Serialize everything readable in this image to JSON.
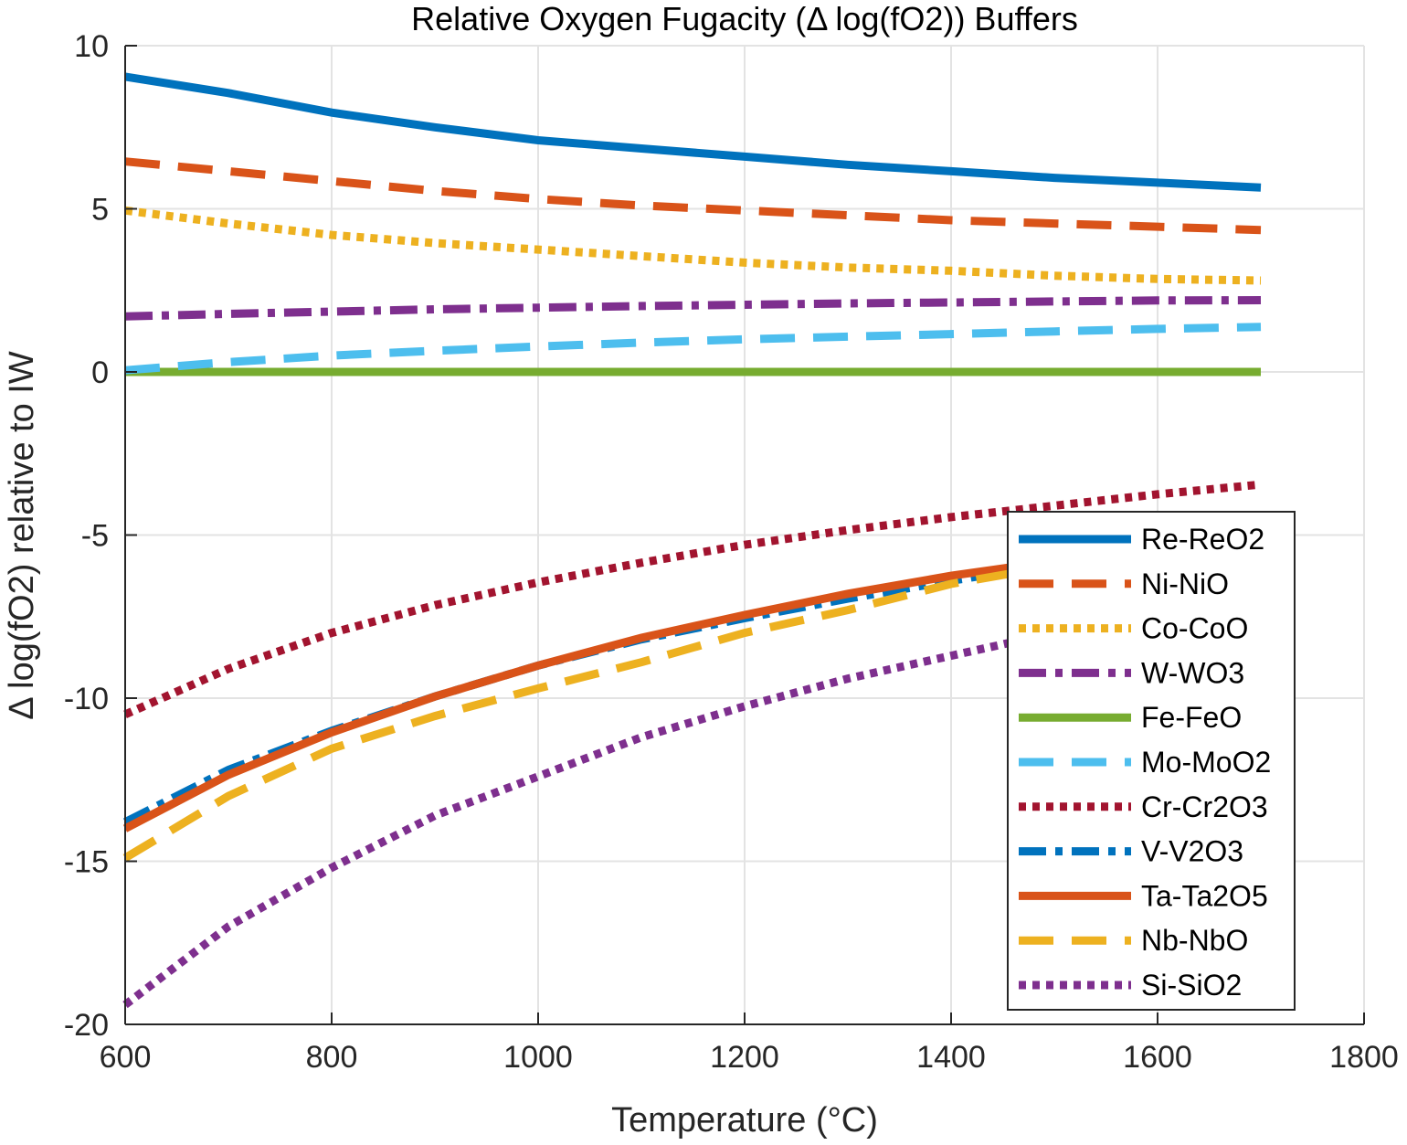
{
  "chart_data": {
    "type": "line",
    "title": "Relative Oxygen Fugacity (Δ log(fO2)) Buffers",
    "xlabel": "Temperature (°C)",
    "ylabel": "Δ log(fO2) relative to IW",
    "xlim": [
      600,
      1800
    ],
    "ylim": [
      -20,
      10
    ],
    "xticks": [
      600,
      800,
      1000,
      1200,
      1400,
      1600,
      1800
    ],
    "yticks": [
      10,
      5,
      0,
      -5,
      -10,
      -15,
      -20
    ],
    "grid": true,
    "legend_position": "lower-right",
    "x": [
      600,
      700,
      800,
      900,
      1000,
      1100,
      1200,
      1300,
      1400,
      1500,
      1600,
      1700
    ],
    "series": [
      {
        "name": "Re-ReO2",
        "color": "#0072BD",
        "style": "solid",
        "values": [
          9.05,
          8.55,
          7.95,
          7.5,
          7.1,
          6.85,
          6.6,
          6.35,
          6.15,
          5.95,
          5.8,
          5.65
        ]
      },
      {
        "name": "Ni-NiO",
        "color": "#D95319",
        "style": "dashed",
        "values": [
          6.45,
          6.15,
          5.85,
          5.55,
          5.3,
          5.1,
          4.95,
          4.8,
          4.65,
          4.55,
          4.45,
          4.35
        ]
      },
      {
        "name": "Co-CoO",
        "color": "#EDB120",
        "style": "dotted",
        "values": [
          4.95,
          4.55,
          4.2,
          3.95,
          3.75,
          3.55,
          3.35,
          3.2,
          3.1,
          2.95,
          2.85,
          2.8
        ]
      },
      {
        "name": "W-WO3",
        "color": "#7E2F8E",
        "style": "dashdot",
        "values": [
          1.7,
          1.78,
          1.85,
          1.92,
          1.97,
          2.02,
          2.06,
          2.1,
          2.13,
          2.16,
          2.19,
          2.2
        ]
      },
      {
        "name": "Fe-FeO",
        "color": "#77AC30",
        "style": "solid",
        "values": [
          0,
          0,
          0,
          0,
          0,
          0,
          0,
          0,
          0,
          0,
          0,
          0
        ]
      },
      {
        "name": "Mo-MoO2",
        "color": "#4DBEEE",
        "style": "dashed",
        "values": [
          0.05,
          0.3,
          0.5,
          0.65,
          0.78,
          0.9,
          1.0,
          1.08,
          1.16,
          1.24,
          1.32,
          1.38
        ]
      },
      {
        "name": "Cr-Cr2O3",
        "color": "#A2142F",
        "style": "dotted",
        "values": [
          -10.5,
          -9.1,
          -8.0,
          -7.15,
          -6.45,
          -5.85,
          -5.3,
          -4.85,
          -4.45,
          -4.1,
          -3.75,
          -3.45
        ]
      },
      {
        "name": "V-V2O3",
        "color": "#0072BD",
        "style": "dashdot",
        "values": [
          -13.8,
          -12.2,
          -11.0,
          -9.95,
          -9.0,
          -8.2,
          -7.55,
          -6.95,
          -6.4,
          -5.9,
          -5.45,
          -5.05
        ]
      },
      {
        "name": "Ta-Ta2O5",
        "color": "#D95319",
        "style": "solid",
        "values": [
          -14.0,
          -12.35,
          -11.05,
          -9.95,
          -9.0,
          -8.15,
          -7.45,
          -6.8,
          -6.25,
          -5.8,
          -5.35,
          -5.0
        ]
      },
      {
        "name": "Nb-NbO",
        "color": "#EDB120",
        "style": "dashed",
        "values": [
          -14.9,
          -13.0,
          -11.55,
          -10.55,
          -9.7,
          -8.9,
          -8.0,
          -7.3,
          -6.5,
          -5.95,
          -5.45,
          -5.0
        ]
      },
      {
        "name": "Si-SiO2",
        "color": "#7E2F8E",
        "style": "dotted",
        "values": [
          -19.4,
          -17.0,
          -15.2,
          -13.6,
          -12.4,
          -11.2,
          -10.25,
          -9.4,
          -8.7,
          -8.0,
          -7.35,
          -6.8
        ]
      }
    ]
  }
}
